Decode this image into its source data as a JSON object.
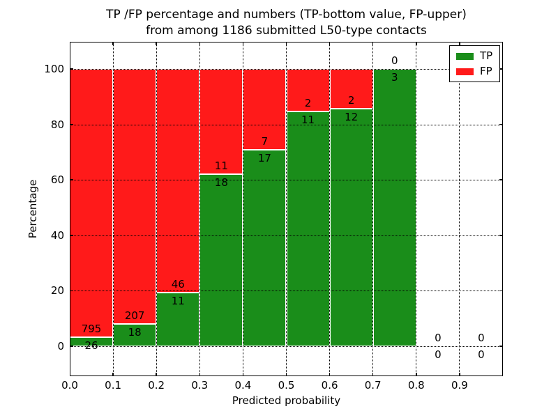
{
  "title": {
    "line1": "TP /FP percentage and numbers (TP-bottom value, FP-upper)",
    "line2": "from among 1186 submitted L50-type contacts"
  },
  "axes": {
    "xlabel": "Predicted probability",
    "ylabel": "Percentage",
    "xtick_labels": [
      "0.0",
      "0.1",
      "0.2",
      "0.3",
      "0.4",
      "0.5",
      "0.6",
      "0.7",
      "0.8",
      "0.9"
    ],
    "ytick_labels": [
      "0",
      "20",
      "40",
      "60",
      "80",
      "100"
    ],
    "ytick_values": [
      0,
      20,
      40,
      60,
      80,
      100
    ]
  },
  "legend": {
    "items": [
      {
        "label": "TP",
        "color": "#1a8d1a"
      },
      {
        "label": "FP",
        "color": "#ff1a1a"
      }
    ]
  },
  "colors": {
    "tp_green": "#1a8d1a",
    "fp_red": "#ff1a1a",
    "bar_edge": "#ffffff",
    "grid": "#000000"
  },
  "chart_data": {
    "type": "bar",
    "stacked": true,
    "title": "TP /FP percentage and numbers (TP-bottom value, FP-upper) from among 1186 submitted L50-type contacts",
    "xlabel": "Predicted probability",
    "ylabel": "Percentage",
    "total_contacts": 1186,
    "bin_width": 0.1,
    "bin_starts": [
      0.0,
      0.1,
      0.2,
      0.3,
      0.4,
      0.5,
      0.6,
      0.7,
      0.8,
      0.9
    ],
    "series": [
      {
        "name": "TP",
        "color": "#1a8d1a",
        "counts": [
          26,
          18,
          11,
          18,
          17,
          11,
          12,
          3,
          0,
          0
        ]
      },
      {
        "name": "FP",
        "color": "#ff1a1a",
        "counts": [
          795,
          207,
          46,
          11,
          7,
          2,
          2,
          0,
          0,
          0
        ]
      }
    ],
    "note_values_are": "counts annotated on bars; bar heights are TP/(TP+FP) and FP/(TP+FP) percentages stacked to 100%",
    "xlim": [
      0.0,
      1.0
    ],
    "ylim": [
      -10.8,
      109.8
    ],
    "grid": "dotted both axes at x=0.1 steps and y=20 steps",
    "legend_position": "upper right"
  }
}
